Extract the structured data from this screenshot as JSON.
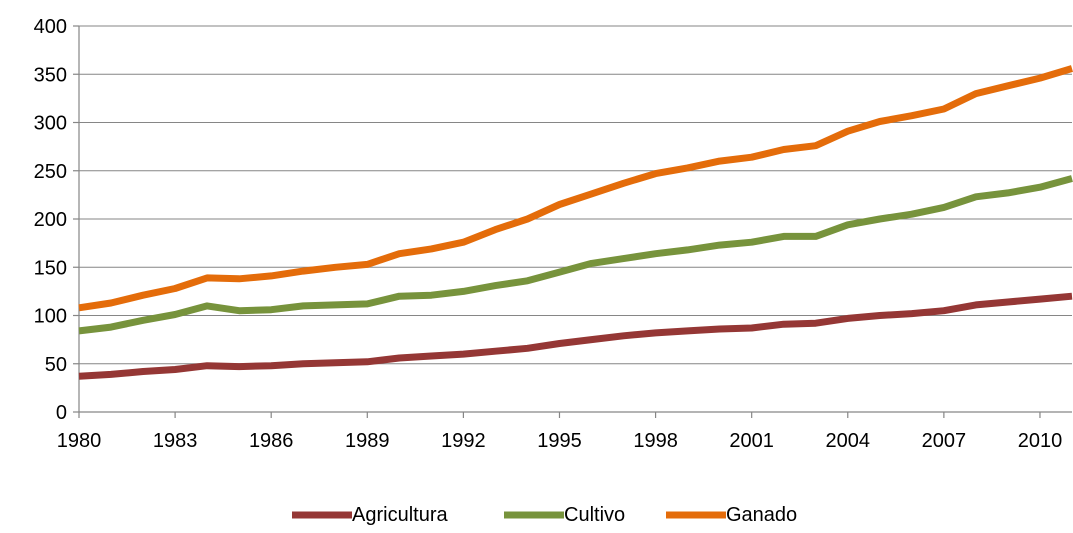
{
  "chart_data": {
    "type": "line",
    "title": "",
    "xlabel": "",
    "ylabel": "",
    "x": [
      1980,
      1981,
      1982,
      1983,
      1984,
      1985,
      1986,
      1987,
      1988,
      1989,
      1990,
      1991,
      1992,
      1993,
      1994,
      1995,
      1996,
      1997,
      1998,
      1999,
      2000,
      2001,
      2002,
      2003,
      2004,
      2005,
      2006,
      2007,
      2008,
      2009,
      2010,
      2011
    ],
    "x_tick_labels": [
      "1980",
      "1983",
      "1986",
      "1989",
      "1992",
      "1995",
      "1998",
      "2001",
      "2004",
      "2007",
      "2010"
    ],
    "y_ticks": [
      0,
      50,
      100,
      150,
      200,
      250,
      300,
      350,
      400
    ],
    "ylim": [
      0,
      400
    ],
    "grid": true,
    "legend_position": "bottom",
    "series": [
      {
        "name": "Agricultura",
        "color": "#953735",
        "values": [
          37,
          39,
          42,
          44,
          48,
          47,
          48,
          50,
          51,
          52,
          56,
          58,
          60,
          63,
          66,
          71,
          75,
          79,
          82,
          84,
          86,
          87,
          91,
          92,
          97,
          100,
          102,
          105,
          111,
          114,
          117,
          120
        ]
      },
      {
        "name": "Cultivo",
        "color": "#77933c",
        "values": [
          84,
          88,
          95,
          101,
          110,
          105,
          106,
          110,
          111,
          112,
          120,
          121,
          125,
          131,
          136,
          145,
          154,
          159,
          164,
          168,
          173,
          176,
          182,
          182,
          194,
          200,
          205,
          212,
          223,
          227,
          233,
          242
        ]
      },
      {
        "name": "Ganado",
        "color": "#e46c0a",
        "values": [
          108,
          113,
          121,
          128,
          139,
          138,
          141,
          146,
          150,
          153,
          164,
          169,
          176,
          189,
          200,
          215,
          226,
          237,
          247,
          253,
          260,
          264,
          272,
          276,
          291,
          301,
          307,
          314,
          330,
          338,
          346,
          356
        ]
      }
    ]
  }
}
